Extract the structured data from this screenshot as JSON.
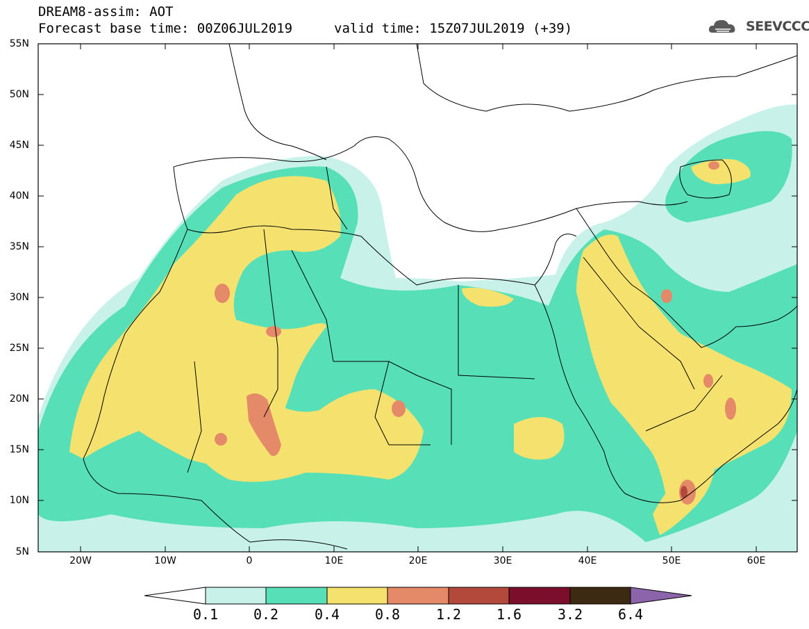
{
  "header": {
    "line1": "DREAM8-assim: AOT",
    "line2_base": "Forecast base time: 00Z06JUL2019",
    "line2_valid": "valid time: 15Z07JUL2019 (+39)"
  },
  "logo": {
    "text": "SEEVCCC",
    "icon": "cloud-icon"
  },
  "map": {
    "lat_labels": [
      "55N",
      "50N",
      "45N",
      "40N",
      "35N",
      "30N",
      "25N",
      "20N",
      "15N",
      "10N",
      "5N"
    ],
    "lon_labels": [
      "20W",
      "10W",
      "0",
      "10E",
      "20E",
      "30E",
      "40E",
      "50E",
      "60E"
    ]
  },
  "colorbar": {
    "labels": [
      "0.1",
      "0.2",
      "0.4",
      "0.8",
      "1.2",
      "1.6",
      "3.2",
      "6.4"
    ],
    "colors": [
      "#ffffff",
      "#c8f1ea",
      "#57e0b8",
      "#f5e26e",
      "#e58a68",
      "#b3493b",
      "#7b0e2a",
      "#3c2a12",
      "#8b64ab"
    ]
  },
  "palette": {
    "c01": "#c8f1ea",
    "c02": "#57e0b8",
    "c04": "#f5e26e",
    "c08": "#e58a68",
    "c12": "#b3493b"
  }
}
